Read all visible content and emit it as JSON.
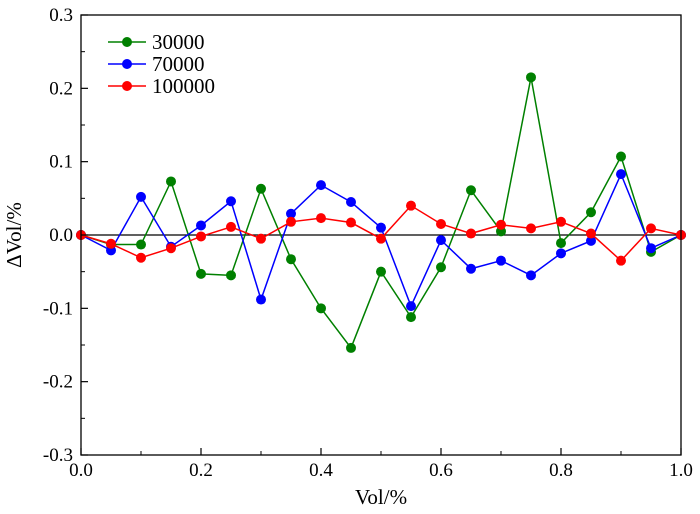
{
  "chart_data": {
    "type": "line",
    "title": "",
    "xlabel": "Vol/%",
    "ylabel": "ΔVol/%",
    "xlim": [
      0.0,
      1.0
    ],
    "ylim": [
      -0.3,
      0.3
    ],
    "x_ticks": [
      "0.0",
      "0.2",
      "0.4",
      "0.6",
      "0.8",
      "1.0"
    ],
    "x_tick_values": [
      0.0,
      0.2,
      0.4,
      0.6,
      0.8,
      1.0
    ],
    "y_ticks": [
      "0.3",
      "0.2",
      "0.1",
      "0.0",
      "-0.1",
      "-0.2",
      "-0.3"
    ],
    "y_tick_values": [
      0.3,
      0.2,
      0.1,
      0.0,
      -0.1,
      -0.2,
      -0.3
    ],
    "reference_line": 0.0,
    "grid": false,
    "legend_position": "top-left",
    "x": [
      0.0,
      0.05,
      0.1,
      0.15,
      0.2,
      0.25,
      0.3,
      0.35,
      0.4,
      0.45,
      0.5,
      0.55,
      0.6,
      0.65,
      0.7,
      0.75,
      0.8,
      0.85,
      0.9,
      0.95,
      1.0
    ],
    "series": [
      {
        "name": "30000",
        "color": "#008000",
        "values": [
          0.0,
          -0.013,
          -0.013,
          0.073,
          -0.053,
          -0.055,
          0.063,
          -0.033,
          -0.1,
          -0.154,
          -0.05,
          -0.112,
          -0.044,
          0.061,
          0.005,
          0.215,
          -0.011,
          0.031,
          0.107,
          -0.023,
          0.0
        ]
      },
      {
        "name": "70000",
        "color": "#0000ff",
        "values": [
          0.0,
          -0.021,
          0.052,
          -0.016,
          0.013,
          0.046,
          -0.088,
          0.029,
          0.068,
          0.045,
          0.01,
          -0.097,
          -0.007,
          -0.046,
          -0.035,
          -0.055,
          -0.025,
          -0.008,
          0.083,
          -0.018,
          0.0
        ]
      },
      {
        "name": "100000",
        "color": "#ff0000",
        "values": [
          0.0,
          -0.012,
          -0.031,
          -0.018,
          -0.002,
          0.011,
          -0.005,
          0.018,
          0.023,
          0.017,
          -0.005,
          0.04,
          0.015,
          0.002,
          0.014,
          0.009,
          0.018,
          0.002,
          -0.035,
          0.009,
          0.0
        ]
      }
    ]
  }
}
